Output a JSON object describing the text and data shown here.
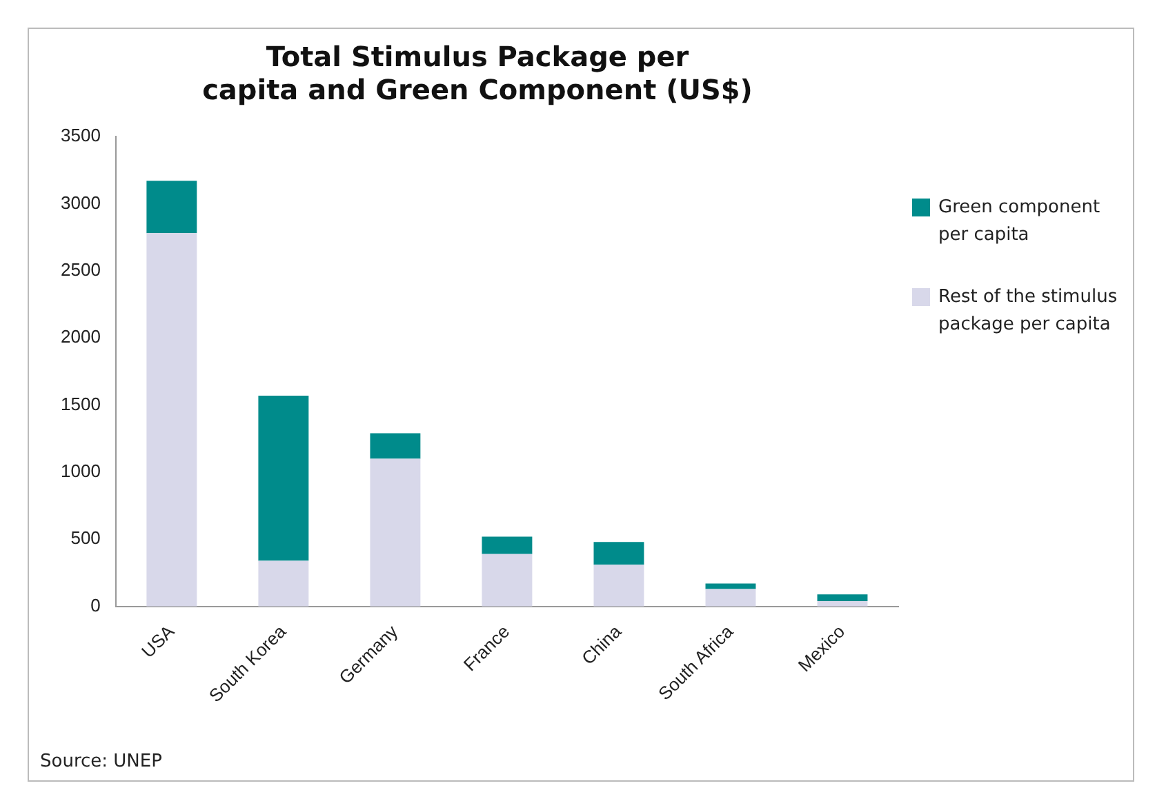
{
  "chart_data": {
    "type": "bar",
    "title": "Total Stimulus Package per capita and Green Component (US$)",
    "categories": [
      "USA",
      "South Korea",
      "Germany",
      "France",
      "China",
      "South Africa",
      "Mexico"
    ],
    "stacked": true,
    "series": [
      {
        "name": "Rest of the stimulus package per capita",
        "color": "#d8d8ea",
        "values": [
          2780,
          340,
          1100,
          390,
          310,
          130,
          40
        ]
      },
      {
        "name": "Green component per capita",
        "color": "#008b8b",
        "values": [
          390,
          1230,
          190,
          130,
          170,
          40,
          50
        ]
      }
    ],
    "ylim": [
      0,
      3500
    ],
    "yticks": [
      0,
      500,
      1000,
      1500,
      2000,
      2500,
      3000,
      3500
    ],
    "grid": false,
    "legend": "right",
    "annotations": [
      "Source: UNEP"
    ]
  }
}
